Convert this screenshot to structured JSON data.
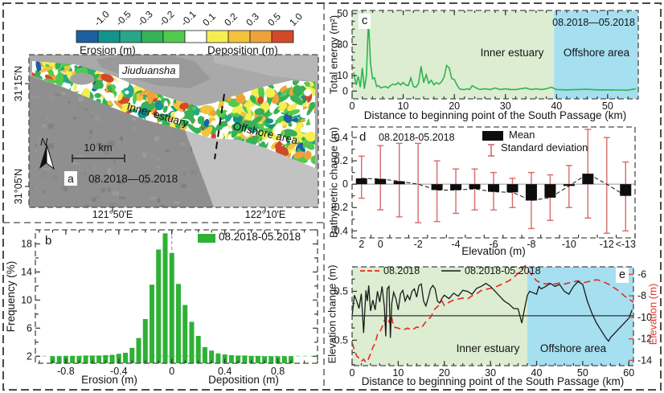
{
  "panel_a": {
    "panel_label": "a",
    "period": "08.2018—05.2018",
    "colorbar": {
      "tick_labels": [
        "-1.0",
        "-0.5",
        "-0.3",
        "-0.2",
        "-0.1",
        "0.1",
        "0.2",
        "0.3",
        "0.5",
        "1.0"
      ],
      "segment_colors": [
        "#1d5fa0",
        "#12948c",
        "#27a788",
        "#35b158",
        "#52c94f",
        "#ffffff",
        "#f4ee52",
        "#f2c33b",
        "#efa23b",
        "#d2492a"
      ],
      "left_caption": "Erosion (m)",
      "right_caption": "Deposition (m)"
    },
    "map": {
      "island_label": "Jiuduansha",
      "inner_label": "Inner estuary",
      "offshore_label": "Offshore area",
      "scale_label": "10 km",
      "north_label": "N",
      "lat_labels": [
        "31°15'N",
        "31°05'N"
      ],
      "lon_labels": [
        "121°50'E",
        "122°10'E"
      ]
    }
  },
  "chart_data": [
    {
      "id": "erosion-deposition-histogram",
      "panel": "b",
      "type": "bar",
      "panel_label": "b",
      "legend_label": "08.2018-05.2018",
      "ylabel": "Frequency (%)",
      "xlabel_left": "Erosion (m)",
      "xlabel_right": "Deposition (m)",
      "bar_color": "#2eb135",
      "xlim": [
        -1.03,
        1.1
      ],
      "ylim": [
        1,
        20
      ],
      "x_ticks": [
        -0.8,
        -0.4,
        0,
        0.4,
        0.8
      ],
      "y_ticks": [
        2,
        6,
        10,
        14,
        18
      ],
      "y_minor": [
        4,
        8,
        12,
        16,
        20
      ],
      "bin_width": 0.05,
      "centers": [
        -0.9,
        -0.85,
        -0.8,
        -0.75,
        -0.7,
        -0.65,
        -0.6,
        -0.55,
        -0.5,
        -0.45,
        -0.4,
        -0.35,
        -0.3,
        -0.25,
        -0.2,
        -0.15,
        -0.1,
        -0.05,
        0,
        0.05,
        0.1,
        0.15,
        0.2,
        0.25,
        0.3,
        0.35,
        0.4,
        0.45,
        0.5,
        0.55,
        0.6,
        0.65,
        0.7,
        0.75,
        0.8,
        0.85,
        0.9
      ],
      "values": [
        2.0,
        2.0,
        2.05,
        2.05,
        2.05,
        2.1,
        2.1,
        2.1,
        2.15,
        2.2,
        2.35,
        2.5,
        3.2,
        4.6,
        7.3,
        12.2,
        17.2,
        19.5,
        16.7,
        12.3,
        9.3,
        6.9,
        4.9,
        3.3,
        2.8,
        2.4,
        2.25,
        2.15,
        2.1,
        2.1,
        2.05,
        2.05,
        2.0,
        2.0,
        2.0,
        2.0,
        2.0
      ]
    },
    {
      "id": "total-energy",
      "panel": "c",
      "type": "line",
      "panel_label": "c",
      "period": "08.2018—05.2018",
      "ylabel": "Total energy (m²)",
      "xlabel": "Distance to beginning point of the South Passage (km)",
      "inner_label": "Inner estuary",
      "offshore_label": "Offshore area",
      "line_color": "#2db54b",
      "inner_bg": "#dcedd2",
      "offshore_bg": "#a5dff0",
      "xlim": [
        0,
        56
      ],
      "ylim": [
        -5,
        52
      ],
      "region_split_km": 39.5,
      "x_ticks": [
        0,
        10,
        20,
        30,
        40,
        50
      ],
      "y_ticks_labeled": [
        0,
        10,
        30,
        50
      ],
      "y_ticks_minor": [
        5,
        15,
        20,
        25,
        35,
        40,
        45
      ],
      "x": [
        0.3,
        0.8,
        1.2,
        1.6,
        2,
        2.4,
        2.8,
        3.2,
        3.6,
        4,
        4.4,
        4.8,
        5.2,
        5.6,
        6,
        6.5,
        7,
        7.5,
        8,
        8.5,
        9,
        9.5,
        10,
        10.5,
        11,
        11.5,
        12,
        12.5,
        13,
        13.5,
        14,
        14.5,
        15,
        15.5,
        16,
        16.5,
        17,
        17.5,
        18,
        18.5,
        19,
        19.5,
        20,
        20.5,
        21,
        21.5,
        22,
        22.5,
        23,
        23.5,
        24,
        25,
        26,
        27,
        28,
        29,
        30,
        31,
        32,
        33,
        34,
        35,
        36,
        37,
        38,
        39,
        40,
        42,
        44,
        46,
        48,
        50,
        52,
        54,
        55.5
      ],
      "y": [
        12,
        4,
        9.5,
        2.5,
        15,
        1.5,
        10,
        46,
        18,
        8,
        8.5,
        3,
        3.5,
        2,
        2.5,
        3,
        2,
        3.5,
        4.5,
        4,
        5.5,
        4,
        5.5,
        4,
        3.5,
        8.5,
        3,
        2.5,
        5,
        16,
        5.5,
        10.5,
        5,
        7,
        4,
        5.5,
        4.5,
        6,
        9,
        16.5,
        15,
        8,
        7.5,
        4,
        1.5,
        1,
        1,
        1.5,
        1,
        3.5,
        2.5,
        1,
        1.5,
        1,
        2,
        1,
        1.5,
        1,
        1,
        1.5,
        2,
        1,
        1.5,
        1,
        1.5,
        2.5,
        1,
        0.8,
        1,
        1.2,
        0.8,
        0.8,
        0.7,
        0.6,
        1.5
      ]
    },
    {
      "id": "bathymetric-change",
      "panel": "d",
      "type": "bar-error",
      "panel_label": "d",
      "period": "08.2018-05.2018",
      "legend_mean": "Mean",
      "legend_std": "Standard deviation",
      "ylabel": "Bathymetric change (m)",
      "xlabel": "Elevation (m)",
      "bar_color": "#0d0d0d",
      "error_color": "#d76a6a",
      "ylim": [
        -0.46,
        0.49
      ],
      "y_ticks": [
        -0.4,
        -0.2,
        0,
        0.2,
        0.4
      ],
      "bin_tick_labels": [
        "2",
        "0",
        "-2",
        "-4",
        "-6",
        "-8",
        "-10",
        "-12",
        "<-13"
      ],
      "label_bins": [
        0,
        1,
        3,
        5,
        7,
        9,
        11,
        13,
        14
      ],
      "means": [
        0.05,
        0.045,
        0.025,
        0,
        -0.05,
        -0.05,
        -0.04,
        -0.065,
        -0.07,
        -0.14,
        -0.115,
        -0.015,
        0.09,
        0,
        -0.1
      ],
      "std_low": [
        -0.12,
        -0.22,
        -0.28,
        -0.33,
        -0.32,
        -0.25,
        -0.22,
        -0.22,
        -0.2,
        -0.38,
        -0.31,
        -0.2,
        -0.29,
        -0.42,
        -0.4
      ],
      "std_high": [
        0.24,
        0.33,
        0.35,
        0.35,
        0.2,
        0.13,
        0.13,
        0.1,
        0.05,
        0.1,
        0.08,
        0.16,
        0.47,
        0.4,
        0.19
      ]
    },
    {
      "id": "elevation-change-profile",
      "panel": "e",
      "type": "line",
      "panel_label": "e",
      "legend": [
        {
          "label": "08.2018",
          "style": "red-dashed"
        },
        {
          "label": "08.2018-05.2018",
          "style": "black-solid"
        }
      ],
      "ylabel_left": "Elevation change (m)",
      "ylabel_right": "Elevation (m)",
      "xlabel": "Distance to beginning point of the South Passage (km)",
      "inner_label": "Inner estuary",
      "offshore_label": "Offshore area",
      "line_color": "#1a1a1a",
      "ref_color": "#e8291d",
      "axis_right_color": "#e0392b",
      "inner_bg": "#dcedd2",
      "offshore_bg": "#a5dff0",
      "xlim": [
        0,
        61
      ],
      "ylim_left": [
        -1.02,
        1.0
      ],
      "ylim_right": [
        -14.5,
        -5.3
      ],
      "region_split_km": 38,
      "x_ticks": [
        0,
        10,
        20,
        30,
        40,
        50,
        60
      ],
      "y_ticks_left": [
        0.5,
        -0.5
      ],
      "y_ticks_right": [
        -6,
        -8,
        -10,
        -12,
        -14
      ],
      "change_x": [
        0,
        0.5,
        1,
        1.5,
        2,
        2.5,
        3,
        3.3,
        3.6,
        4,
        4.5,
        5,
        5.5,
        6,
        6.5,
        7,
        7.3,
        7.6,
        8,
        8.3,
        8.6,
        9,
        9.5,
        10,
        10.5,
        11,
        11.5,
        12,
        12.5,
        13,
        13.5,
        14,
        14.5,
        15,
        15.5,
        16,
        16.5,
        17,
        17.5,
        18,
        18.5,
        19,
        19.5,
        20,
        21,
        22,
        23,
        24,
        25,
        26,
        27,
        28,
        29,
        30,
        31,
        32,
        33,
        34,
        35,
        36,
        36.8,
        37.3,
        38,
        38.5,
        39,
        40,
        40.5,
        41,
        42,
        43,
        44,
        45,
        46,
        47,
        48,
        49,
        50,
        51,
        52,
        53,
        54,
        55,
        55.6,
        56,
        57,
        58,
        59,
        60,
        60.7
      ],
      "change_y": [
        0.0,
        0.42,
        0.3,
        0.15,
        0.45,
        -0.35,
        0.52,
        0.3,
        0.62,
        0.1,
        0.32,
        0.12,
        0.5,
        0.28,
        0.6,
        0.18,
        -0.42,
        0.55,
        0.6,
        -0.45,
        0.25,
        0.48,
        0.35,
        0.12,
        0.45,
        0.52,
        0.3,
        0.42,
        0.33,
        0.5,
        0.55,
        0.38,
        0.62,
        0.65,
        0.3,
        0.2,
        0.36,
        0.55,
        0.62,
        0.55,
        0.3,
        0.26,
        0.36,
        0.42,
        0.35,
        0.46,
        0.4,
        0.52,
        0.5,
        0.44,
        0.56,
        0.6,
        0.66,
        0.6,
        0.5,
        0.4,
        0.3,
        0.24,
        0.15,
        0.14,
        -0.15,
        0.1,
        0.42,
        0.5,
        0.48,
        0.44,
        0.6,
        0.55,
        0.6,
        0.66,
        0.6,
        0.64,
        0.5,
        0.44,
        0.6,
        0.7,
        0.64,
        0.3,
        0.05,
        -0.15,
        -0.3,
        -0.45,
        -0.52,
        -0.45,
        -0.35,
        -0.25,
        -0.15,
        -0.05,
        0.12
      ],
      "elev_x": [
        0,
        1,
        1.5,
        2,
        2.5,
        3,
        3.5,
        4,
        4.5,
        5,
        5.5,
        6,
        6.5,
        7,
        7.5,
        8,
        8.5,
        9,
        10,
        11,
        12,
        13,
        14,
        15,
        16,
        17,
        18,
        19,
        19.5,
        20,
        21,
        22,
        23,
        24,
        25,
        26,
        27,
        28,
        29,
        30,
        31,
        32,
        33,
        34,
        35,
        36,
        37,
        37.5,
        38,
        39,
        40,
        41,
        42,
        43,
        44,
        45,
        46,
        47,
        48,
        49,
        50,
        51,
        52,
        53,
        54,
        55,
        56,
        57,
        58,
        59,
        60,
        61
      ],
      "elev_y": [
        -12.4,
        -13.6,
        -13.8,
        -14.1,
        -13.9,
        -14.2,
        -13.9,
        -13.4,
        -12.8,
        -12.4,
        -11.6,
        -11.4,
        -10.9,
        -10.3,
        -9.9,
        -10.4,
        -9.8,
        -10.9,
        -11.0,
        -11.2,
        -11.0,
        -11.2,
        -10.9,
        -11.0,
        -10.4,
        -10.0,
        -9.2,
        -8.8,
        -8.5,
        -8.9,
        -8.6,
        -8.4,
        -8.3,
        -8.2,
        -8.3,
        -8.0,
        -7.8,
        -7.5,
        -7.4,
        -7.3,
        -7.2,
        -7.0,
        -6.8,
        -6.6,
        -6.3,
        -5.9,
        -5.4,
        -5.2,
        -5.5,
        -6.1,
        -6.6,
        -6.8,
        -6.9,
        -6.8,
        -6.9,
        -6.8,
        -6.9,
        -6.8,
        -6.7,
        -6.6,
        -6.8,
        -6.7,
        -6.6,
        -6.5,
        -6.6,
        -6.8,
        -7.0,
        -7.3,
        -7.6,
        -8.0,
        -8.3,
        -8.6
      ]
    }
  ]
}
